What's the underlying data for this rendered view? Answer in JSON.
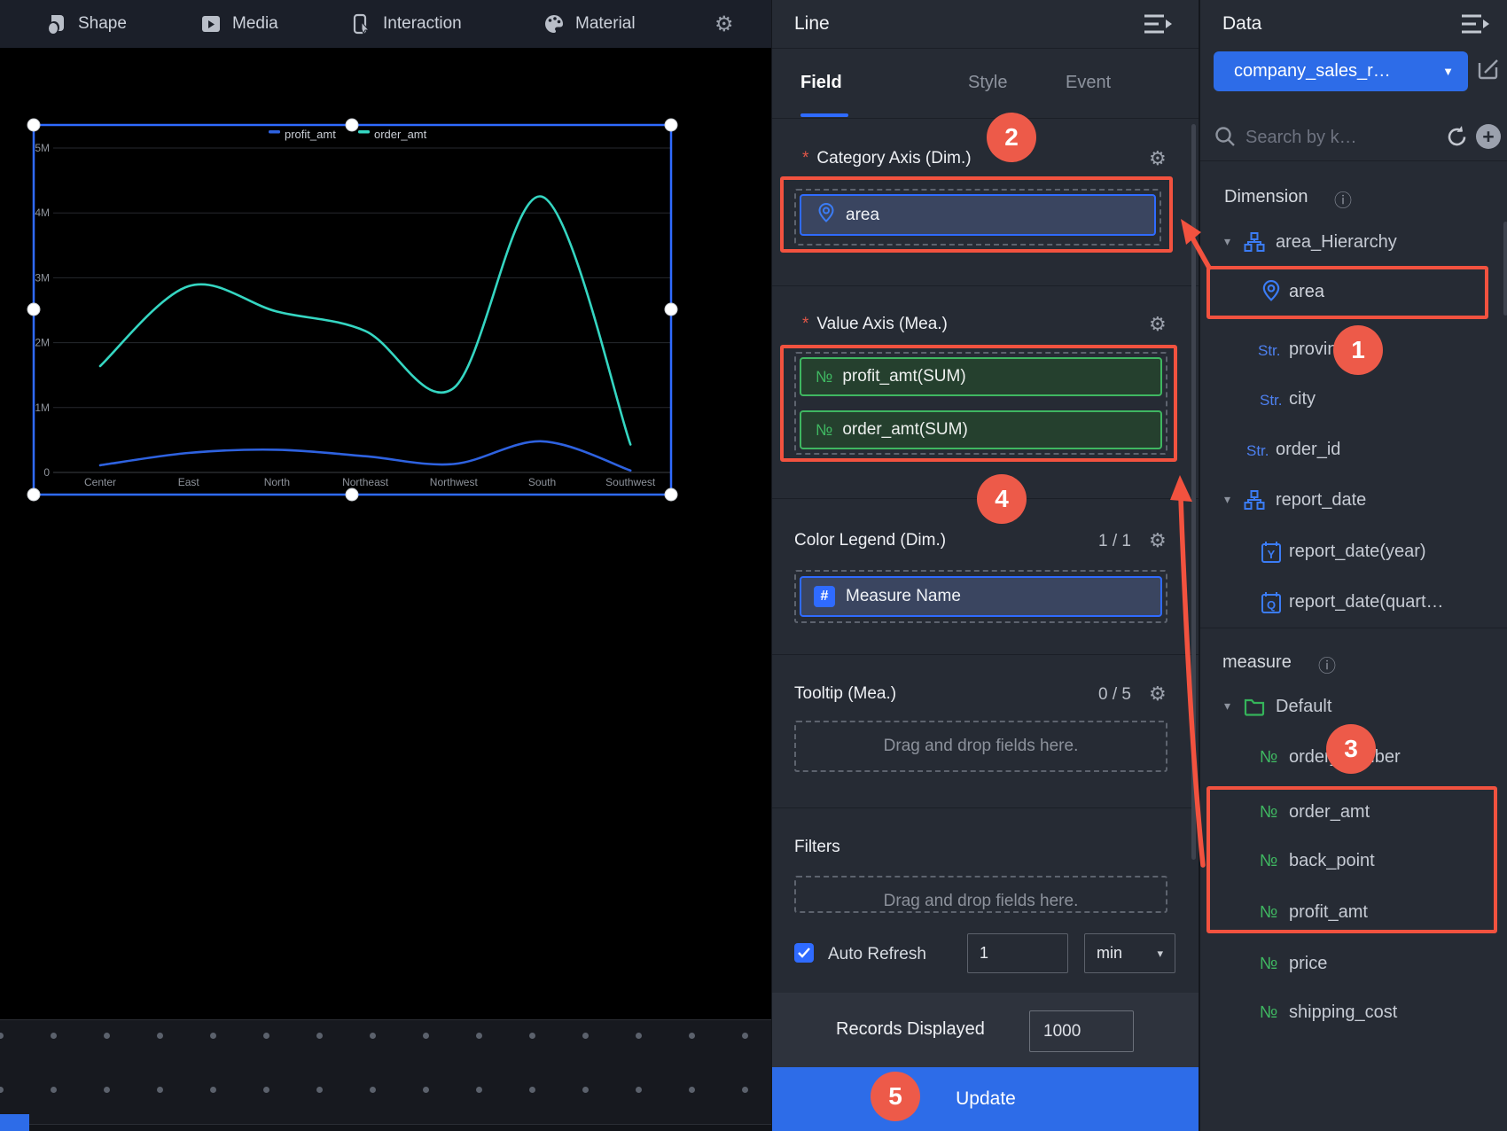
{
  "toolbar": {
    "items": [
      {
        "label": "Shape"
      },
      {
        "label": "Media"
      },
      {
        "label": "Interaction"
      },
      {
        "label": "Material"
      }
    ]
  },
  "chart_data": {
    "type": "line",
    "title": "",
    "categories": [
      "Center",
      "East",
      "North",
      "Northeast",
      "Northwest",
      "South",
      "Southwest"
    ],
    "series": [
      {
        "name": "profit_amt",
        "color": "#2e62e0",
        "values": [
          110000,
          300000,
          350000,
          250000,
          130000,
          480000,
          30000
        ]
      },
      {
        "name": "order_amt",
        "color": "#35d6c2",
        "values": [
          1640000,
          2870000,
          2480000,
          2180000,
          1300000,
          4250000,
          430000
        ]
      }
    ],
    "yticks": [
      "0",
      "1M",
      "2M",
      "3M",
      "4M",
      "5M"
    ],
    "ylim": [
      0,
      5000000
    ],
    "grid": true,
    "legend_position": "top"
  },
  "line_panel": {
    "title": "Line",
    "tabs": [
      {
        "label": "Field"
      },
      {
        "label": "Style"
      },
      {
        "label": "Event"
      }
    ],
    "category_axis": {
      "required": "*",
      "label": "Category Axis (Dim.)",
      "field": "area"
    },
    "value_axis": {
      "required": "*",
      "label": "Value Axis (Mea.)",
      "num_prefix": "№",
      "fields": [
        {
          "label": "profit_amt(SUM)"
        },
        {
          "label": "order_amt(SUM)"
        }
      ]
    },
    "color_legend": {
      "label": "Color Legend (Dim.)",
      "count": "1 / 1",
      "field": "Measure Name",
      "field_icon": "#"
    },
    "tooltip": {
      "label": "Tooltip (Mea.)",
      "count": "0 / 5",
      "placeholder": "Drag and drop fields here."
    },
    "filters": {
      "label": "Filters",
      "placeholder": "Drag and drop fields here."
    },
    "auto_refresh": {
      "label": "Auto Refresh",
      "checked": true,
      "interval": "1",
      "unit": "min"
    },
    "records": {
      "label": "Records Displayed",
      "value": "1000"
    },
    "update_label": "Update"
  },
  "data_panel": {
    "title": "Data",
    "dataset": "company_sales_r…",
    "search_placeholder": "Search by k…",
    "str_prefix": "Str.",
    "num_prefix": "№",
    "dimension": {
      "header": "Dimension",
      "rows": [
        {
          "label": "area_Hierarchy",
          "type": "hierarchy"
        },
        {
          "label": "area",
          "type": "geo"
        },
        {
          "label": "province",
          "type": "string"
        },
        {
          "label": "city",
          "type": "string"
        },
        {
          "label": "order_id",
          "type": "string"
        },
        {
          "label": "report_date",
          "type": "hierarchy"
        },
        {
          "label": "report_date(year)",
          "type": "date_year",
          "icon_letter": "Y"
        },
        {
          "label": "report_date(quart…",
          "type": "date_quarter",
          "icon_letter": "Q"
        }
      ]
    },
    "measure": {
      "header": "measure",
      "rows": [
        {
          "label": "Default",
          "type": "folder"
        },
        {
          "label": "order_number",
          "type": "number"
        },
        {
          "label": "order_amt",
          "type": "number"
        },
        {
          "label": "back_point",
          "type": "number"
        },
        {
          "label": "profit_amt",
          "type": "number"
        },
        {
          "label": "price",
          "type": "number"
        },
        {
          "label": "shipping_cost",
          "type": "number"
        }
      ]
    }
  },
  "annotations": {
    "circles": [
      {
        "n": "1"
      },
      {
        "n": "2"
      },
      {
        "n": "3"
      },
      {
        "n": "4"
      },
      {
        "n": "5"
      }
    ],
    "color": "#f2523f"
  },
  "icons": {
    "gear": "⚙",
    "info": "ⓘ",
    "caret_down": "▾",
    "caret_select": "▼",
    "plus": "+"
  },
  "colors": {
    "accent_blue": "#2d6ce8",
    "accent_green": "#3fb761",
    "annotation_red": "#f2523f",
    "series_teal": "#35d6c2",
    "series_blue": "#2e62e0"
  }
}
